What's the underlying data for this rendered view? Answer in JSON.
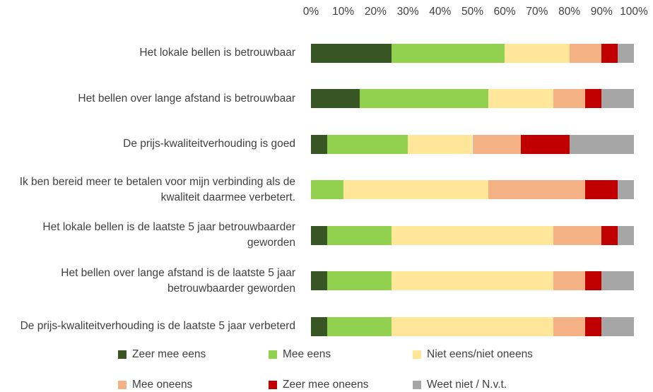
{
  "chart_data": {
    "type": "stacked-barh",
    "categories": [
      "Het lokale bellen is betrouwbaar",
      "Het bellen over lange afstand is betrouwbaar",
      "De prijs-kwaliteitverhouding is goed",
      "Ik ben bereid meer te betalen voor mijn verbinding als de kwaliteit daarmee verbetert.",
      "Het lokale bellen is de laatste 5 jaar betrouwbaarder geworden",
      "Het bellen over lange afstand is de laatste 5 jaar betrouwbaarder geworden",
      "De prijs-kwaliteitverhouding is de laatste 5 jaar verbeterd"
    ],
    "series": [
      {
        "name": "Zeer mee eens",
        "color": "#375623",
        "values": [
          25,
          15,
          5,
          0,
          5,
          5,
          5
        ]
      },
      {
        "name": "Mee eens",
        "color": "#92d050",
        "values": [
          35,
          40,
          25,
          10,
          20,
          20,
          20
        ]
      },
      {
        "name": "Niet eens/niet oneens",
        "color": "#ffe699",
        "values": [
          20,
          20,
          20,
          45,
          50,
          50,
          50
        ]
      },
      {
        "name": "Mee oneens",
        "color": "#f4b183",
        "values": [
          10,
          10,
          15,
          30,
          15,
          10,
          10
        ]
      },
      {
        "name": "Zeer mee oneens",
        "color": "#c00000",
        "values": [
          5,
          5,
          15,
          10,
          5,
          5,
          5
        ]
      },
      {
        "name": "Weet niet / N.v.t.",
        "color": "#a6a6a6",
        "values": [
          5,
          10,
          20,
          5,
          5,
          10,
          10
        ]
      }
    ],
    "xlim": [
      0,
      100
    ],
    "xticks": [
      {
        "value": 0,
        "label": "0%"
      },
      {
        "value": 10,
        "label": "10%"
      },
      {
        "value": 20,
        "label": "20%"
      },
      {
        "value": 30,
        "label": "30%"
      },
      {
        "value": 40,
        "label": "40%"
      },
      {
        "value": 50,
        "label": "50%"
      },
      {
        "value": 60,
        "label": "60%"
      },
      {
        "value": 70,
        "label": "70%"
      },
      {
        "value": 80,
        "label": "80%"
      },
      {
        "value": 90,
        "label": "90%"
      },
      {
        "value": 100,
        "label": "100%"
      }
    ],
    "legend": "bottom"
  }
}
